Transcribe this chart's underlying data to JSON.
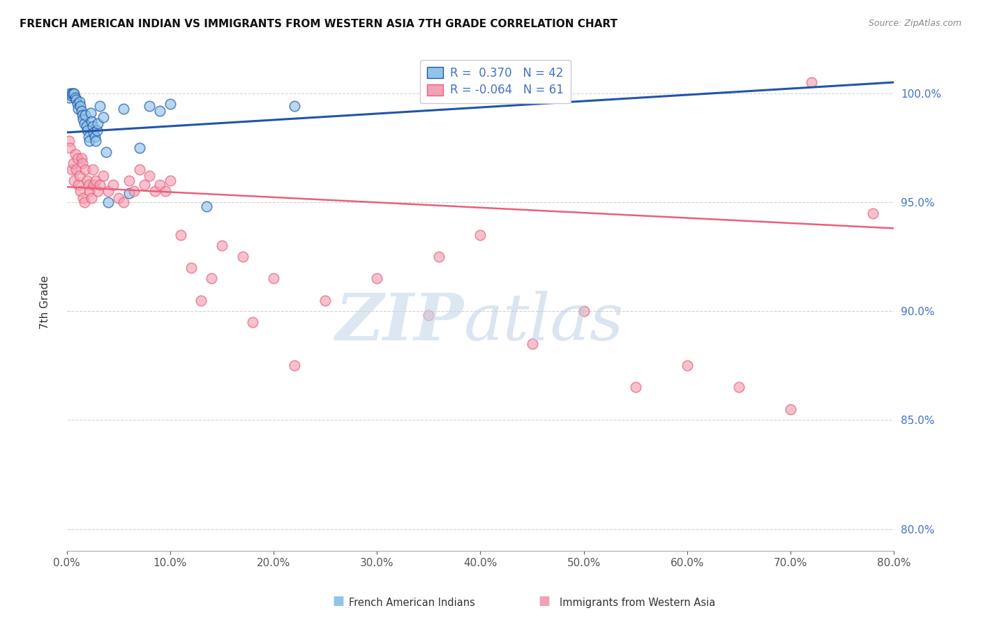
{
  "title": "FRENCH AMERICAN INDIAN VS IMMIGRANTS FROM WESTERN ASIA 7TH GRADE CORRELATION CHART",
  "source": "Source: ZipAtlas.com",
  "ylabel": "7th Grade",
  "yticks": [
    80.0,
    85.0,
    90.0,
    95.0,
    100.0
  ],
  "xticks": [
    0.0,
    10.0,
    20.0,
    30.0,
    40.0,
    50.0,
    60.0,
    70.0,
    80.0
  ],
  "xlim": [
    0.0,
    80.0
  ],
  "ylim": [
    79.0,
    101.8
  ],
  "legend_blue_r": "0.370",
  "legend_blue_n": "42",
  "legend_pink_r": "-0.064",
  "legend_pink_n": "61",
  "legend_label_blue": "French American Indians",
  "legend_label_pink": "Immigrants from Western Asia",
  "blue_color": "#90C4E8",
  "pink_color": "#F4A0B5",
  "blue_line_color": "#2255AA",
  "pink_line_color": "#E8607A",
  "blue_scatter_x": [
    0.2,
    0.3,
    0.4,
    0.5,
    0.6,
    0.7,
    0.8,
    0.9,
    1.0,
    1.1,
    1.2,
    1.3,
    1.4,
    1.5,
    1.6,
    1.7,
    1.8,
    1.9,
    2.0,
    2.1,
    2.2,
    2.3,
    2.4,
    2.5,
    2.6,
    2.7,
    2.8,
    2.9,
    3.0,
    3.2,
    3.5,
    3.8,
    4.0,
    5.5,
    6.0,
    7.0,
    8.0,
    9.0,
    10.0,
    13.5,
    22.0,
    44.5
  ],
  "blue_scatter_y": [
    99.8,
    100.0,
    99.9,
    100.0,
    100.0,
    100.0,
    99.8,
    99.7,
    99.5,
    99.3,
    99.6,
    99.4,
    99.2,
    99.0,
    98.8,
    98.6,
    99.0,
    98.5,
    98.3,
    98.0,
    97.8,
    99.1,
    98.7,
    98.5,
    98.2,
    98.0,
    97.8,
    98.3,
    98.6,
    99.4,
    98.9,
    97.3,
    95.0,
    99.3,
    95.4,
    97.5,
    99.4,
    99.2,
    99.5,
    94.8,
    99.4,
    100.0
  ],
  "pink_scatter_x": [
    0.2,
    0.3,
    0.5,
    0.6,
    0.7,
    0.8,
    0.9,
    1.0,
    1.1,
    1.2,
    1.3,
    1.4,
    1.5,
    1.6,
    1.7,
    1.8,
    2.0,
    2.1,
    2.2,
    2.4,
    2.5,
    2.6,
    2.8,
    3.0,
    3.2,
    3.5,
    4.0,
    4.5,
    5.0,
    5.5,
    6.0,
    6.5,
    7.0,
    7.5,
    8.0,
    8.5,
    9.0,
    9.5,
    10.0,
    11.0,
    12.0,
    13.0,
    14.0,
    15.0,
    17.0,
    18.0,
    20.0,
    22.0,
    25.0,
    30.0,
    35.0,
    36.0,
    40.0,
    45.0,
    50.0,
    55.0,
    60.0,
    65.0,
    70.0,
    72.0,
    78.0
  ],
  "pink_scatter_y": [
    97.8,
    97.5,
    96.5,
    96.8,
    96.0,
    97.2,
    96.5,
    97.0,
    95.8,
    96.2,
    95.5,
    97.0,
    96.8,
    95.2,
    95.0,
    96.5,
    96.0,
    95.8,
    95.5,
    95.2,
    96.5,
    95.8,
    96.0,
    95.5,
    95.8,
    96.2,
    95.5,
    95.8,
    95.2,
    95.0,
    96.0,
    95.5,
    96.5,
    95.8,
    96.2,
    95.5,
    95.8,
    95.5,
    96.0,
    93.5,
    92.0,
    90.5,
    91.5,
    93.0,
    92.5,
    89.5,
    91.5,
    87.5,
    90.5,
    91.5,
    89.8,
    92.5,
    93.5,
    88.5,
    90.0,
    86.5,
    87.5,
    86.5,
    85.5,
    100.5,
    94.5
  ]
}
